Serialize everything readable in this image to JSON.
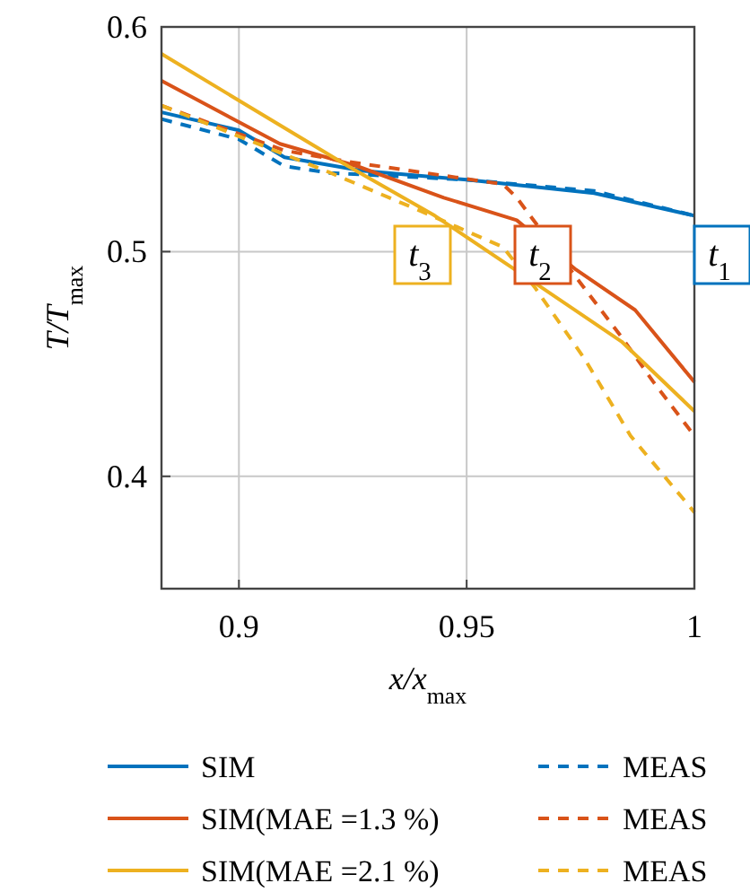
{
  "chart_data": {
    "type": "line",
    "xlabel": "x/x$_{max}$",
    "ylabel": "T/T$_{max}$",
    "xlim": [
      0.883,
      1
    ],
    "ylim": [
      0.35,
      0.6
    ],
    "xticks": [
      0.9,
      0.95,
      1
    ],
    "yticks": [
      0.4,
      0.5,
      0.6
    ],
    "grid": true,
    "legend": "bottom",
    "series": [
      {
        "name": "SIM",
        "color": "#0072bd",
        "line_style": "solid",
        "x": [
          0.883,
          0.9,
          0.91,
          0.927,
          0.95,
          0.978,
          1
        ],
        "values": [
          0.562,
          0.554,
          0.542,
          0.536,
          0.532,
          0.526,
          0.516
        ]
      },
      {
        "name": "MEAS",
        "color": "#0072bd",
        "line_style": "dashed",
        "x": [
          0.883,
          0.9,
          0.91,
          0.92,
          0.95,
          0.978,
          1
        ],
        "values": [
          0.559,
          0.55,
          0.538,
          0.535,
          0.532,
          0.527,
          0.516
        ]
      },
      {
        "name": "SIM(MAE =1.3 %)",
        "color": "#d95319",
        "line_style": "solid",
        "x": [
          0.883,
          0.909,
          0.926,
          0.945,
          0.961,
          0.974,
          0.987,
          1
        ],
        "values": [
          0.576,
          0.548,
          0.538,
          0.524,
          0.514,
          0.492,
          0.474,
          0.442
        ]
      },
      {
        "name": "MEAS",
        "color": "#d95319",
        "line_style": "dashed",
        "x": [
          0.883,
          0.91,
          0.924,
          0.958,
          0.961,
          0.975,
          0.984,
          0.991,
          1
        ],
        "values": [
          0.565,
          0.545,
          0.54,
          0.53,
          0.524,
          0.486,
          0.462,
          0.442,
          0.418
        ]
      },
      {
        "name": "SIM(MAE =2.1 %)",
        "color": "#edb120",
        "line_style": "solid",
        "x": [
          0.883,
          0.924,
          0.943,
          0.965,
          0.984,
          1
        ],
        "values": [
          0.588,
          0.538,
          0.516,
          0.486,
          0.46,
          0.429
        ]
      },
      {
        "name": "MEAS",
        "color": "#edb120",
        "line_style": "dashed",
        "x": [
          0.883,
          0.919,
          0.94,
          0.958,
          0.965,
          0.976,
          0.986,
          1
        ],
        "values": [
          0.565,
          0.536,
          0.518,
          0.502,
          0.484,
          0.452,
          0.418,
          0.384
        ]
      }
    ],
    "annotations": [
      "t$_{1}$",
      "t$_{2}$",
      "t$_{3}$"
    ]
  }
}
